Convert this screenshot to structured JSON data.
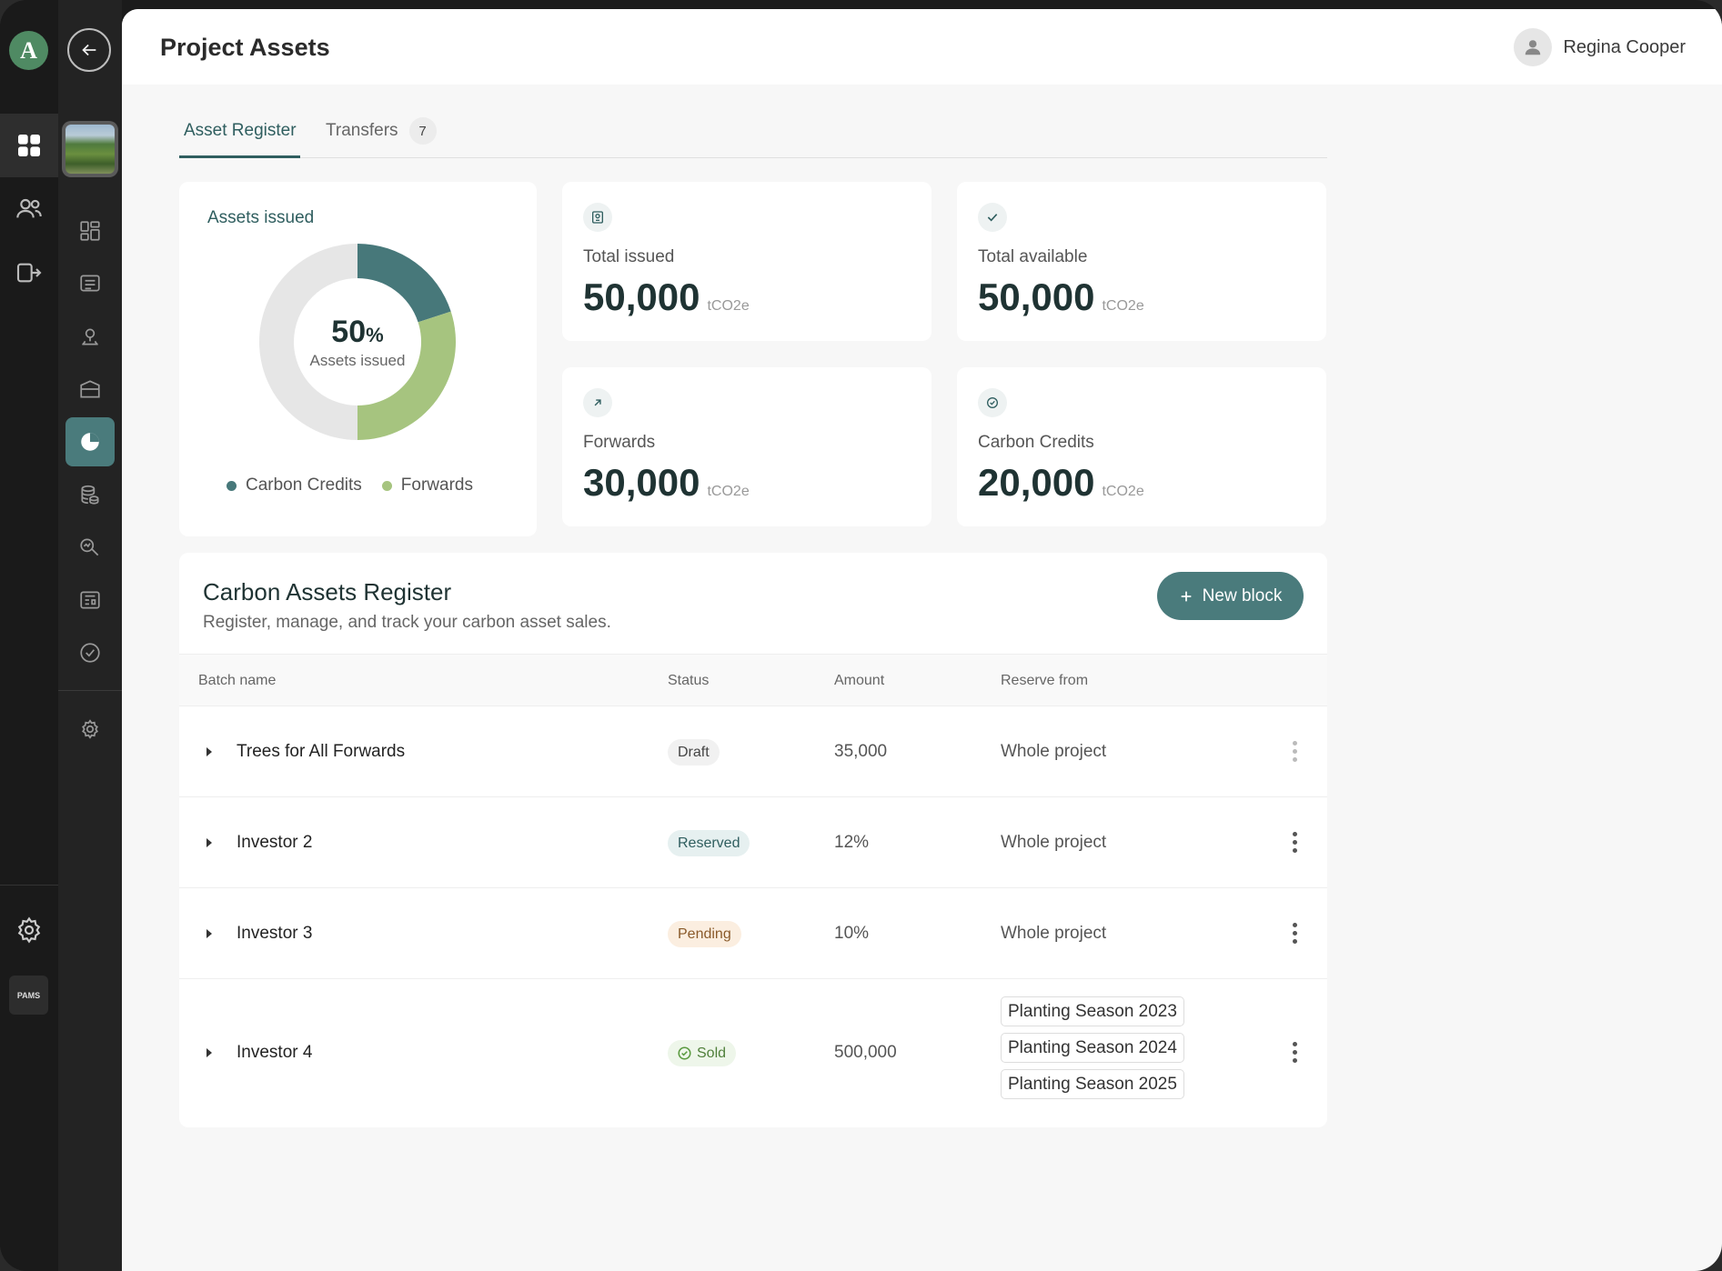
{
  "header": {
    "title": "Project Assets",
    "user_name": "Regina Cooper"
  },
  "tabs": [
    {
      "label": "Asset Register"
    },
    {
      "label": "Transfers",
      "badge": "7"
    }
  ],
  "donut": {
    "title": "Assets issued",
    "center_value": "50",
    "center_unit": "%",
    "center_label": "Assets issued",
    "legend": [
      "Carbon Credits",
      "Forwards"
    ],
    "shares": [
      {
        "name": "Carbon Credits",
        "fraction": 0.2,
        "color": "#47787a"
      },
      {
        "name": "Forwards",
        "fraction": 0.3,
        "color": "#a6c47f"
      },
      {
        "name": "remaining",
        "fraction": 0.5,
        "color": "#e6e6e6"
      }
    ]
  },
  "stats": [
    {
      "label": "Total issued",
      "value": "50,000",
      "unit": "tCO2e",
      "icon": "certificate-icon"
    },
    {
      "label": "Total available",
      "value": "50,000",
      "unit": "tCO2e",
      "icon": "check-icon"
    },
    {
      "label": "Forwards",
      "value": "30,000",
      "unit": "tCO2e",
      "icon": "arrow-up-right-icon"
    },
    {
      "label": "Carbon Credits",
      "value": "20,000",
      "unit": "tCO2e",
      "icon": "check-circle-icon"
    }
  ],
  "register": {
    "title": "Carbon Assets Register",
    "subtitle": "Register, manage, and track your carbon asset sales.",
    "new_button": "New block",
    "columns": [
      "Batch name",
      "Status",
      "Amount",
      "Reserve from"
    ],
    "rows": [
      {
        "batch": "Trees for All Forwards",
        "status": "Draft",
        "amount": "35,000",
        "reserve": "Whole project"
      },
      {
        "batch": "Investor 2",
        "status": "Reserved",
        "amount": "12%",
        "reserve": "Whole project"
      },
      {
        "batch": "Investor 3",
        "status": "Pending",
        "amount": "10%",
        "reserve": "Whole project"
      },
      {
        "batch": "Investor 4",
        "status": "Sold",
        "amount": "500,000",
        "reserve_tags": [
          "Planting Season 2023",
          "Planting Season 2024",
          "Planting Season 2025"
        ]
      }
    ]
  },
  "status_colors": {
    "Draft": {
      "bg": "#f1f1f1",
      "fg": "#444444"
    },
    "Reserved": {
      "bg": "#e6f0f0",
      "fg": "#2f5e5f"
    },
    "Pending": {
      "bg": "#fbeee0",
      "fg": "#8a5a2a"
    },
    "Sold": {
      "bg": "#eef6ea",
      "fg": "#4f7f3a"
    }
  },
  "brand": {
    "logo_letter": "A",
    "badge_text": "PAMS"
  }
}
